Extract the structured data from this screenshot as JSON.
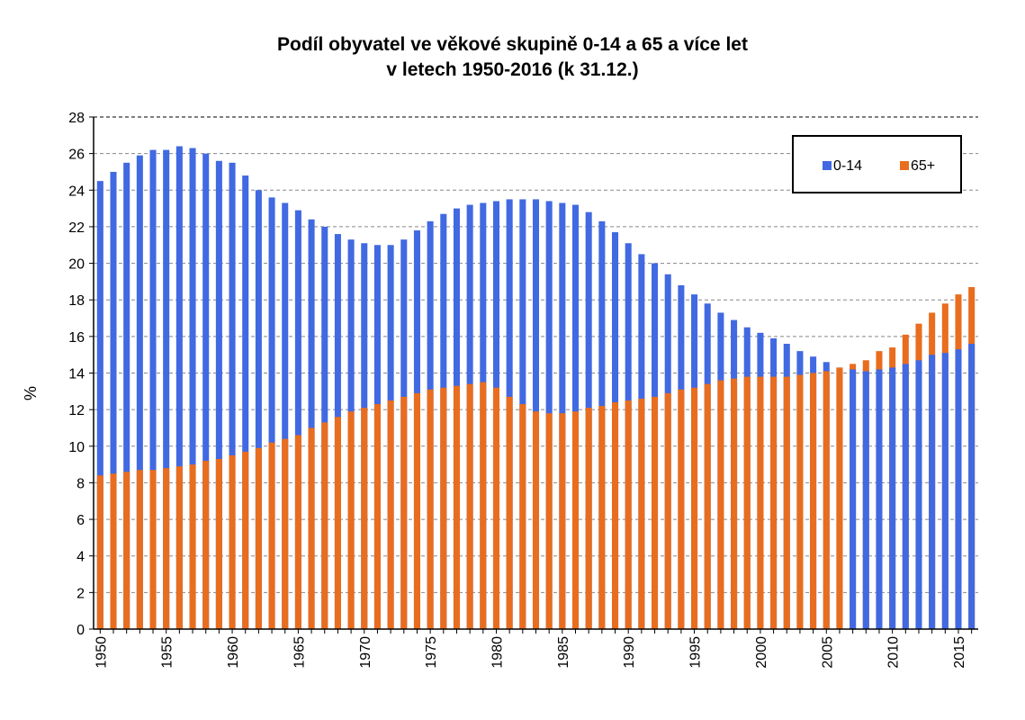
{
  "chart_data": {
    "type": "bar",
    "title": "Podíl obyvatel ve věkové skupině 0-14 a 65 a více let",
    "subtitle": "v letech 1950-2016 (k 31.12.)",
    "xlabel": "",
    "ylabel": "%",
    "ylim": [
      0,
      28
    ],
    "yticks": [
      0,
      2,
      4,
      6,
      8,
      10,
      12,
      14,
      16,
      18,
      20,
      22,
      24,
      26,
      28
    ],
    "grid": true,
    "legend_position": "top-right",
    "categories": [
      1950,
      1951,
      1952,
      1953,
      1954,
      1955,
      1956,
      1957,
      1958,
      1959,
      1960,
      1961,
      1962,
      1963,
      1964,
      1965,
      1966,
      1967,
      1968,
      1969,
      1970,
      1971,
      1972,
      1973,
      1974,
      1975,
      1976,
      1977,
      1978,
      1979,
      1980,
      1981,
      1982,
      1983,
      1984,
      1985,
      1986,
      1987,
      1988,
      1989,
      1990,
      1991,
      1992,
      1993,
      1994,
      1995,
      1996,
      1997,
      1998,
      1999,
      2000,
      2001,
      2002,
      2003,
      2004,
      2005,
      2006,
      2007,
      2008,
      2009,
      2010,
      2011,
      2012,
      2013,
      2014,
      2015,
      2016
    ],
    "x_tick_labels": [
      1950,
      1955,
      1960,
      1965,
      1970,
      1975,
      1980,
      1985,
      1990,
      1995,
      2000,
      2005,
      2010,
      2015
    ],
    "series": [
      {
        "name": "0-14",
        "color": "#4169E1",
        "values": [
          24.5,
          25.0,
          25.5,
          25.9,
          26.2,
          26.2,
          26.4,
          26.3,
          26.0,
          25.6,
          25.5,
          24.8,
          24.0,
          23.6,
          23.3,
          22.9,
          22.4,
          22.0,
          21.6,
          21.3,
          21.1,
          21.0,
          21.0,
          21.3,
          21.8,
          22.3,
          22.7,
          23.0,
          23.2,
          23.3,
          23.4,
          23.5,
          23.5,
          23.5,
          23.4,
          23.3,
          23.2,
          22.8,
          22.3,
          21.7,
          21.1,
          20.5,
          20.0,
          19.4,
          18.8,
          18.3,
          17.8,
          17.3,
          16.9,
          16.5,
          16.2,
          15.9,
          15.6,
          15.2,
          14.9,
          14.6,
          14.3,
          14.2,
          14.1,
          14.2,
          14.3,
          14.5,
          14.7,
          15.0,
          15.1,
          15.3,
          15.6
        ]
      },
      {
        "name": "65+",
        "color": "#E96D1E",
        "values": [
          8.4,
          8.5,
          8.6,
          8.7,
          8.7,
          8.8,
          8.9,
          9.0,
          9.2,
          9.3,
          9.5,
          9.7,
          9.9,
          10.2,
          10.4,
          10.6,
          11.0,
          11.3,
          11.6,
          11.9,
          12.1,
          12.3,
          12.5,
          12.7,
          12.9,
          13.1,
          13.2,
          13.3,
          13.4,
          13.5,
          13.2,
          12.7,
          12.3,
          11.9,
          11.8,
          11.8,
          11.9,
          12.1,
          12.2,
          12.4,
          12.5,
          12.6,
          12.7,
          12.9,
          13.1,
          13.2,
          13.4,
          13.6,
          13.7,
          13.8,
          13.8,
          13.8,
          13.8,
          13.9,
          14.0,
          14.1,
          14.3,
          14.5,
          14.7,
          15.2,
          15.4,
          16.1,
          16.7,
          17.3,
          17.8,
          18.3,
          18.7
        ]
      }
    ]
  }
}
